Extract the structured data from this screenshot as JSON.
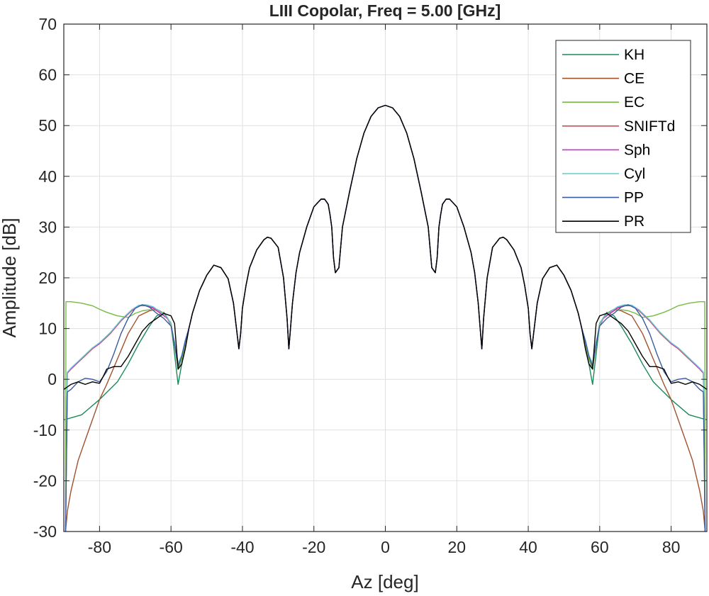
{
  "chart_data": {
    "type": "line",
    "title": "LIII Copolar, Freq = 5.00 [GHz]",
    "xlabel": "Az [deg]",
    "ylabel": "Amplitude [dB]",
    "xlim": [
      -90,
      90
    ],
    "ylim": [
      -30,
      70
    ],
    "xticks": [
      -80,
      -60,
      -40,
      -20,
      0,
      20,
      40,
      60,
      80
    ],
    "yticks": [
      -30,
      -20,
      -10,
      0,
      10,
      20,
      30,
      40,
      50,
      60,
      70
    ],
    "grid": true,
    "legend_position": "top-right",
    "main_lobe": {
      "x": [
        -90,
        -84,
        -80,
        -78,
        -76,
        -74,
        -72,
        -70,
        -68,
        -66,
        -64,
        -62,
        -60,
        -59,
        -58,
        -57,
        -56,
        -55,
        -54,
        -52,
        -50,
        -48,
        -46,
        -44,
        -42.5,
        -41.5,
        -41,
        -40.5,
        -40,
        -39,
        -38,
        -36,
        -34,
        -33,
        -32,
        -30,
        -28.5,
        -27.5,
        -27,
        -26.5,
        -26,
        -25,
        -24,
        -22,
        -20,
        -18,
        -17,
        -16,
        -15.5,
        -15,
        -14.5,
        -14,
        -13,
        -12,
        -10,
        -8,
        -6,
        -4,
        -2,
        0,
        2,
        4,
        6,
        8,
        10,
        12,
        13,
        14,
        14.5,
        15,
        15.5,
        16,
        17,
        18,
        20,
        22,
        24,
        25,
        26,
        26.5,
        27,
        27.5,
        28.5,
        30,
        32,
        33,
        34,
        36,
        38,
        39,
        40,
        40.5,
        41,
        41.5,
        42.5,
        44,
        46,
        48,
        50,
        52,
        54,
        55,
        56,
        57,
        58,
        59,
        60,
        62,
        64,
        66,
        68,
        70,
        72,
        74,
        76,
        78,
        80,
        84,
        90
      ],
      "y": [
        -2,
        -0.8,
        -0.8,
        1.5,
        2.5,
        2.5,
        4.5,
        7,
        9.5,
        11,
        12,
        13,
        12.5,
        11,
        7,
        3,
        6,
        10,
        13,
        17.5,
        20.5,
        22.5,
        22,
        19.8,
        15,
        9,
        6,
        9,
        14,
        18.5,
        22,
        25.5,
        27.5,
        28,
        27.8,
        26,
        20,
        12,
        6,
        10.5,
        15,
        21,
        25,
        30,
        34,
        35.5,
        35.5,
        34.5,
        32.5,
        30,
        24,
        21,
        22,
        30,
        37,
        43.5,
        48.5,
        51.8,
        53.5,
        54,
        53.5,
        51.8,
        48.5,
        43.5,
        37,
        30,
        22,
        21,
        24,
        30,
        32.5,
        34.5,
        35.5,
        35.5,
        34,
        30,
        25,
        21,
        15,
        10.5,
        6,
        12,
        20,
        26,
        27.8,
        28,
        27.5,
        25.5,
        22,
        18.5,
        14,
        9,
        6,
        9,
        15,
        19.8,
        22,
        22.5,
        20.5,
        17.5,
        13,
        10,
        6,
        3,
        7,
        11,
        12.5,
        13,
        12,
        11,
        9.5,
        7,
        4.5,
        2.5,
        2.5,
        1.5,
        -0.8,
        -0.8,
        -2
      ]
    },
    "series": [
      {
        "name": "KH",
        "color": "#1a8a5a",
        "x": [
          -90,
          -85,
          -80,
          -75,
          -72,
          -69,
          -66,
          -64,
          -62,
          -60,
          -59,
          -58,
          -57,
          -56,
          56,
          57,
          58,
          59,
          60,
          62,
          64,
          66,
          69,
          72,
          75,
          80,
          85,
          90
        ],
        "y": [
          -8,
          -7,
          -4,
          -0.5,
          3,
          7,
          10.5,
          12.5,
          13.2,
          11,
          5,
          -1,
          3,
          6,
          6,
          3,
          -1,
          5,
          11,
          13.2,
          12.5,
          10.5,
          7,
          3,
          -0.5,
          -4,
          -7,
          -8
        ]
      },
      {
        "name": "CE",
        "color": "#a0522d",
        "x": [
          -89.5,
          -89,
          -88,
          -86,
          -84,
          -82,
          -80,
          -78,
          -75,
          -72,
          -69,
          -66,
          -64,
          -62,
          -60,
          -59,
          -58,
          -57,
          -56,
          56,
          57,
          58,
          59,
          60,
          62,
          64,
          66,
          69,
          72,
          75,
          78,
          80,
          82,
          84,
          86,
          88,
          89,
          89.5
        ],
        "y": [
          -30,
          -26,
          -22,
          -16,
          -12,
          -8,
          -4,
          -1,
          4,
          9,
          12.5,
          13.5,
          13.8,
          13,
          11,
          7,
          2,
          4,
          7,
          7,
          4,
          2,
          7,
          11,
          13,
          13.8,
          13.5,
          12.5,
          9,
          4,
          -1,
          -4,
          -8,
          -12,
          -16,
          -22,
          -26,
          -30
        ]
      },
      {
        "name": "EC",
        "color": "#77bb44",
        "x": [
          -89.5,
          -89.4,
          -88,
          -85,
          -82,
          -80,
          -78,
          -75,
          -72,
          -70,
          -68,
          -66,
          -64,
          -62,
          -60,
          -59,
          -58,
          -57,
          -56,
          56,
          57,
          58,
          59,
          60,
          62,
          64,
          66,
          68,
          70,
          72,
          75,
          78,
          80,
          82,
          85,
          88,
          89.4,
          89.5
        ],
        "y": [
          -30,
          15.3,
          15.3,
          15,
          14.5,
          13.8,
          13.2,
          12.5,
          12.2,
          13,
          13.5,
          13.7,
          13.6,
          13,
          11,
          7,
          2,
          4,
          7,
          7,
          4,
          2,
          7,
          11,
          13,
          13.6,
          13.7,
          13.5,
          13,
          12.2,
          12.5,
          13.2,
          13.8,
          14.5,
          15,
          15.3,
          15.3,
          -30
        ]
      },
      {
        "name": "SNIFTd",
        "color": "#d94a4a",
        "x": [
          -89.5,
          -89,
          -88,
          -85,
          -82,
          -80,
          -77,
          -74,
          -71,
          -69,
          -67,
          -65,
          -63,
          -61,
          -60,
          -59,
          -58,
          -57,
          -56,
          56,
          57,
          58,
          59,
          60,
          61,
          63,
          65,
          67,
          69,
          71,
          74,
          77,
          80,
          82,
          85,
          88,
          89,
          89.5
        ],
        "y": [
          -30,
          1.2,
          2,
          4,
          6,
          7,
          9,
          11.5,
          13.5,
          14.5,
          14.5,
          14,
          13,
          12,
          10.5,
          7,
          3,
          4.5,
          7.5,
          7.5,
          4.5,
          3,
          7,
          10.5,
          12,
          13,
          14,
          14.5,
          14.5,
          13.5,
          11.5,
          9,
          7,
          6,
          4,
          2,
          1.2,
          -30
        ]
      },
      {
        "name": "Sph",
        "color": "#cc33cc",
        "x": [
          -89.5,
          -89,
          -88,
          -85,
          -82,
          -80,
          -77,
          -74,
          -71,
          -69,
          -67,
          -65,
          -63,
          -61,
          -60,
          -59,
          -58,
          -57,
          -56,
          56,
          57,
          58,
          59,
          60,
          61,
          63,
          65,
          67,
          69,
          71,
          74,
          77,
          80,
          82,
          85,
          88,
          89,
          89.5
        ],
        "y": [
          -30,
          1.3,
          2.1,
          4.1,
          6.1,
          7.1,
          9.1,
          11.6,
          13.6,
          14.6,
          14.6,
          14.1,
          13.1,
          12.1,
          10.6,
          7.1,
          3.1,
          4.6,
          7.6,
          7.6,
          4.6,
          3.1,
          7.1,
          10.6,
          12.1,
          13.1,
          14.1,
          14.6,
          14.6,
          13.6,
          11.6,
          9.1,
          7.1,
          6.1,
          4.1,
          2.1,
          1.3,
          -30
        ]
      },
      {
        "name": "Cyl",
        "color": "#66cccc",
        "x": [
          -89.5,
          -89,
          -88,
          -85,
          -82,
          -80,
          -77,
          -74,
          -71,
          -69,
          -67,
          -65,
          -63,
          -61,
          -60,
          -59,
          -58,
          -57,
          -56,
          56,
          57,
          58,
          59,
          60,
          61,
          63,
          65,
          67,
          69,
          71,
          74,
          77,
          80,
          82,
          85,
          88,
          89,
          89.5
        ],
        "y": [
          -30,
          1.4,
          2.2,
          4.2,
          6.2,
          7.2,
          9.2,
          11.7,
          13.7,
          14.6,
          14.7,
          14.3,
          13.3,
          12.2,
          10.7,
          7.2,
          3.2,
          4.7,
          7.7,
          7.7,
          4.7,
          3.2,
          7.2,
          10.7,
          12.2,
          13.3,
          14.3,
          14.7,
          14.6,
          13.7,
          11.7,
          9.2,
          7.2,
          6.2,
          4.2,
          2.2,
          1.4,
          -30
        ]
      },
      {
        "name": "PP",
        "color": "#3a5ba0",
        "x": [
          -89.5,
          -89,
          -88,
          -86,
          -84,
          -82,
          -80,
          -78,
          -76,
          -74,
          -72,
          -70,
          -68,
          -66,
          -64,
          -62,
          -60,
          -59,
          -58,
          -57,
          -56,
          56,
          57,
          58,
          59,
          60,
          62,
          64,
          66,
          68,
          70,
          72,
          74,
          76,
          78,
          80,
          82,
          84,
          86,
          88,
          89,
          89.5
        ],
        "y": [
          -30,
          -2.5,
          -2,
          -0.5,
          0.2,
          0,
          -0.5,
          1.5,
          5,
          9,
          12,
          14,
          14.7,
          14.2,
          13,
          12,
          10.5,
          7,
          2.5,
          4.5,
          7.5,
          7.5,
          4.5,
          2.5,
          7,
          10.5,
          12,
          13,
          14.2,
          14.7,
          14,
          12,
          9,
          5,
          1.5,
          -0.5,
          0,
          0.2,
          -0.5,
          -2,
          -2.5,
          -30
        ]
      },
      {
        "name": "PR",
        "color": "#000000",
        "x": [
          -90,
          -88,
          -86,
          -84,
          -82,
          -80,
          -79,
          -78,
          -76,
          -74,
          -72,
          -70,
          -68,
          -66,
          -64,
          -62,
          -60,
          -59,
          -58,
          -57,
          -56,
          56,
          57,
          58,
          59,
          60,
          62,
          64,
          66,
          68,
          70,
          72,
          74,
          76,
          78,
          79,
          80,
          82,
          84,
          86,
          88,
          90
        ],
        "y": [
          -2,
          -1,
          -0.5,
          -1,
          -0.5,
          -0.8,
          0.5,
          2,
          2.5,
          2.5,
          4.5,
          7,
          9.5,
          11,
          12,
          13,
          12.5,
          11,
          2,
          3,
          6,
          6,
          3,
          2,
          11,
          12.5,
          13,
          12,
          11,
          9.5,
          7,
          4.5,
          2.5,
          2.5,
          2,
          0.5,
          -0.8,
          -0.5,
          -1,
          -0.5,
          -1,
          -2
        ]
      }
    ]
  }
}
